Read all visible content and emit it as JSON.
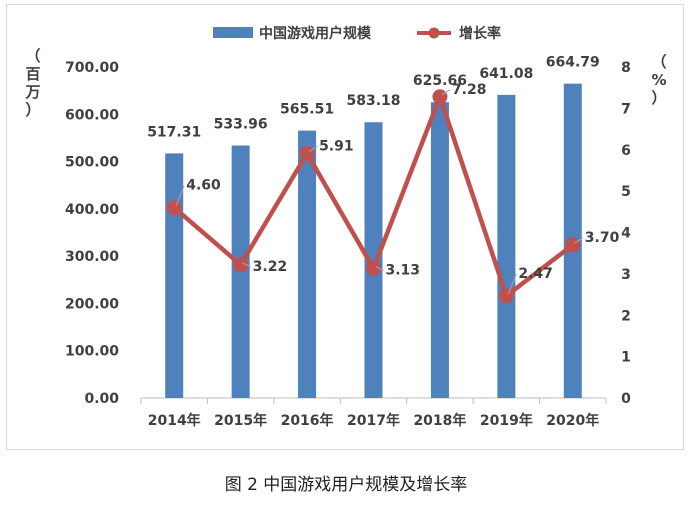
{
  "chart_data": {
    "type": "bar+line",
    "categories": [
      "2014年",
      "2015年",
      "2016年",
      "2017年",
      "2018年",
      "2019年",
      "2020年"
    ],
    "series": [
      {
        "name": "中国游戏用户规模",
        "type": "bar",
        "axis": "left",
        "values": [
          517.31,
          533.96,
          565.51,
          583.18,
          625.66,
          641.08,
          664.79
        ],
        "labels": [
          "517.31",
          "533.96",
          "565.51",
          "583.18",
          "625.66",
          "641.08",
          "664.79"
        ],
        "color": "#4f81bd"
      },
      {
        "name": "增长率",
        "type": "line",
        "axis": "right",
        "values": [
          4.6,
          3.22,
          5.91,
          3.13,
          7.28,
          2.47,
          3.7
        ],
        "labels": [
          "4.60",
          "3.22",
          "5.91",
          "3.13",
          "7.28",
          "2.47",
          "3.70"
        ],
        "color": "#c0504d"
      }
    ],
    "ylabel_left_chars": [
      "（",
      "百",
      "万",
      "）"
    ],
    "ylabel_right_chars": [
      "（",
      "%",
      "）"
    ],
    "ylim_left": [
      0,
      700
    ],
    "ylim_right": [
      0,
      8
    ],
    "yticks_left": [
      "0.00",
      "100.00",
      "200.00",
      "300.00",
      "400.00",
      "500.00",
      "600.00",
      "700.00"
    ],
    "yticks_right": [
      "0",
      "1",
      "2",
      "3",
      "4",
      "5",
      "6",
      "7",
      "8"
    ],
    "legend_position": "top-center",
    "grid": false
  },
  "caption": "图 2  中国游戏用户规模及增长率"
}
